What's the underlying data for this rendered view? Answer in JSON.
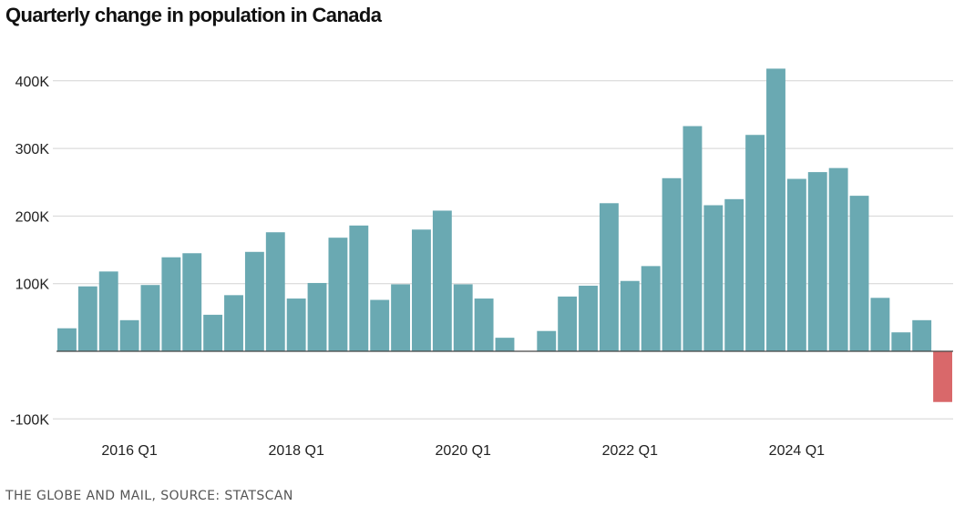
{
  "title": "Quarterly change in population in Canada",
  "source": "THE GLOBE AND MAIL, SOURCE: STATSCAN",
  "colors": {
    "positive": "#6aa9b2",
    "negative": "#d9686a",
    "grid": "#d4d4d4",
    "baseline": "#444444",
    "text": "#222222"
  },
  "chart_data": {
    "type": "bar",
    "title": "Quarterly change in population in Canada",
    "xlabel": "",
    "ylabel": "",
    "ylim": [
      -100000,
      420000
    ],
    "grid": true,
    "legend": "none",
    "yticks": [
      {
        "value": 400000,
        "label": "400K"
      },
      {
        "value": 300000,
        "label": "300K"
      },
      {
        "value": 200000,
        "label": "200K"
      },
      {
        "value": 100000,
        "label": "100K"
      },
      {
        "value": -100000,
        "label": "-100K"
      }
    ],
    "xticks": [
      {
        "index": 3,
        "label": "2016 Q1"
      },
      {
        "index": 11,
        "label": "2018 Q1"
      },
      {
        "index": 19,
        "label": "2020 Q1"
      },
      {
        "index": 27,
        "label": "2022 Q1"
      },
      {
        "index": 35,
        "label": "2024 Q1"
      }
    ],
    "categories": [
      "2015 Q2",
      "2015 Q3",
      "2015 Q4",
      "2016 Q1",
      "2016 Q2",
      "2016 Q3",
      "2016 Q4",
      "2017 Q1",
      "2017 Q2",
      "2017 Q3",
      "2017 Q4",
      "2018 Q1",
      "2018 Q2",
      "2018 Q3",
      "2018 Q4",
      "2019 Q1",
      "2019 Q2",
      "2019 Q3",
      "2019 Q4",
      "2020 Q1",
      "2020 Q2",
      "2020 Q3",
      "2020 Q4",
      "2021 Q1",
      "2021 Q2",
      "2021 Q3",
      "2021 Q4",
      "2022 Q1",
      "2022 Q2",
      "2022 Q3",
      "2022 Q4",
      "2023 Q1",
      "2023 Q2",
      "2023 Q3",
      "2023 Q4",
      "2024 Q1",
      "2024 Q2",
      "2024 Q3",
      "2024 Q4",
      "2025 Q1",
      "2025 Q2",
      "2025 Q3",
      "2025 Q4"
    ],
    "values": [
      34000,
      96000,
      118000,
      46000,
      98000,
      139000,
      145000,
      54000,
      83000,
      147000,
      176000,
      78000,
      101000,
      168000,
      186000,
      76000,
      99000,
      180000,
      208000,
      99000,
      78000,
      20000,
      0,
      30000,
      81000,
      97000,
      219000,
      104000,
      126000,
      256000,
      333000,
      216000,
      225000,
      320000,
      418000,
      255000,
      265000,
      271000,
      230000,
      79000,
      28000,
      46000,
      -75000
    ]
  }
}
